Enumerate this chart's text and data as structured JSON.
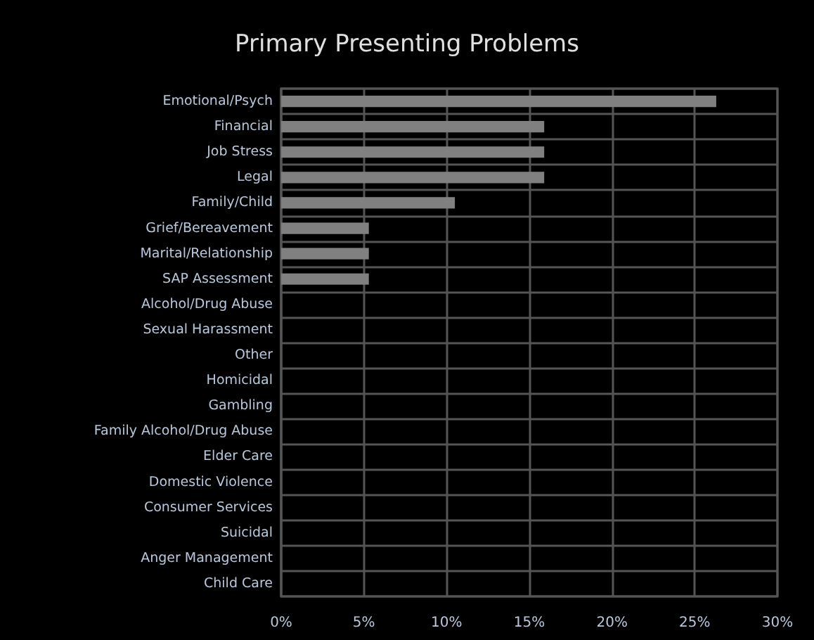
{
  "chart_data": {
    "type": "bar",
    "orientation": "horizontal",
    "title": "Primary Presenting Problems",
    "categories": [
      "Emotional/Psych",
      "Financial",
      "Job Stress",
      "Legal",
      "Family/Child",
      "Grief/Bereavement",
      "Marital/Relationship",
      "SAP Assessment",
      "Alcohol/Drug Abuse",
      "Sexual Harassment",
      "Other",
      "Homicidal",
      "Gambling",
      "Family Alcohol/Drug Abuse",
      "Elder Care",
      "Domestic Violence",
      "Consumer Services",
      "Suicidal",
      "Anger Management",
      "Child Care"
    ],
    "values": [
      26.3,
      15.9,
      15.9,
      15.9,
      10.5,
      5.3,
      5.3,
      5.3,
      0,
      0,
      0,
      0,
      0,
      0,
      0,
      0,
      0,
      0,
      0,
      0
    ],
    "color": "#808080",
    "xlim": [
      0,
      30
    ],
    "xticks": [
      {
        "value": 0,
        "label": "0%"
      },
      {
        "value": 5,
        "label": "5%"
      },
      {
        "value": 10,
        "label": "10%"
      },
      {
        "value": 15,
        "label": "15%"
      },
      {
        "value": 20,
        "label": "20%"
      },
      {
        "value": 25,
        "label": "25%"
      },
      {
        "value": 30,
        "label": "30%"
      }
    ],
    "grid": true
  }
}
